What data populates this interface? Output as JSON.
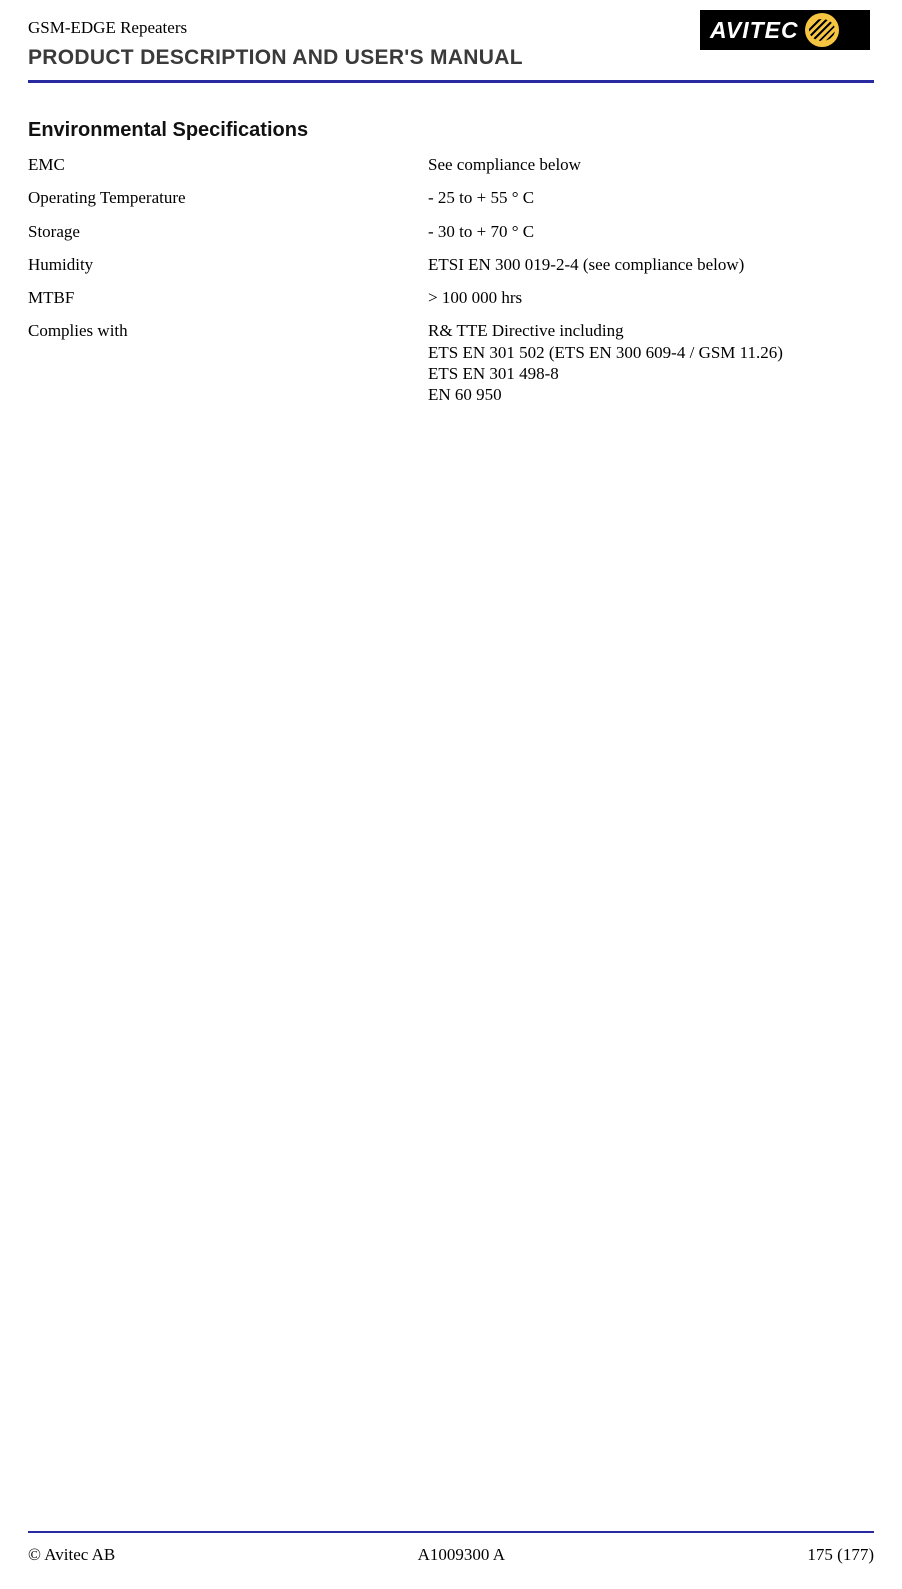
{
  "header": {
    "line1": "GSM-EDGE Repeaters",
    "line2": "PRODUCT DESCRIPTION AND USER'S MANUAL",
    "logo_text": "AVITEC",
    "logo_bg": "#000000",
    "logo_accent": "#f5c542",
    "rule_color": "#2a2aa0"
  },
  "section": {
    "title": "Environmental Specifications"
  },
  "specs": [
    {
      "label": "EMC",
      "value": "See compliance below"
    },
    {
      "label": "Operating Temperature",
      "value": "- 25 to + 55 ° C"
    },
    {
      "label": "Storage",
      "value": "- 30 to + 70 ° C"
    },
    {
      "label": "Humidity",
      "value": "ETSI EN 300 019-2-4 (see compliance below)"
    },
    {
      "label": "MTBF",
      "value": "> 100 000 hrs"
    },
    {
      "label": "Complies with",
      "value": "R& TTE Directive including\nETS EN 301 502 (ETS EN 300 609-4 / GSM 11.26)\nETS EN 301 498-8\nEN 60 950"
    }
  ],
  "footer": {
    "left": "© Avitec AB",
    "center": "A1009300 A",
    "right": "175 (177)"
  }
}
